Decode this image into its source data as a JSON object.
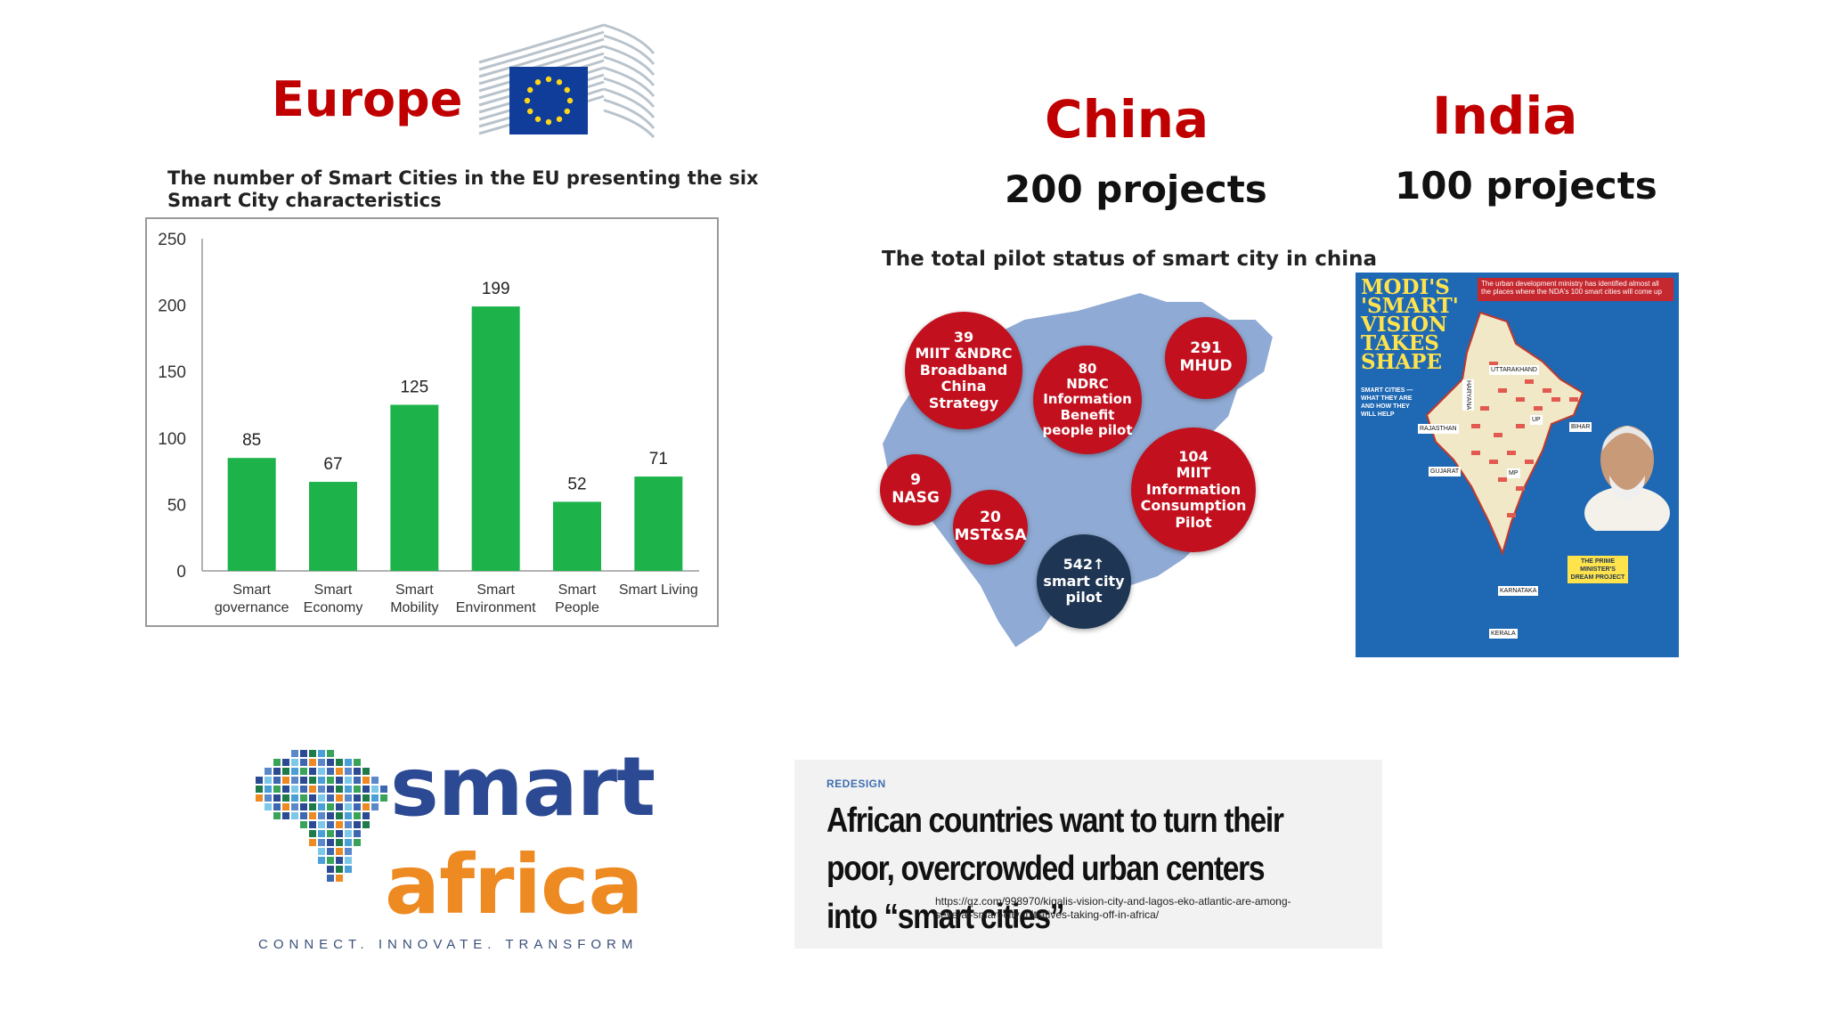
{
  "europe": {
    "title": "Europe"
  },
  "china": {
    "title": "China",
    "projects": "200 projects",
    "map_title": "The total pilot status of smart city in china",
    "bubbles": [
      {
        "text": "39\nMIIT &NDRC\nBroadband\nChina Strategy"
      },
      {
        "text": "80\nNDRC\nInformation\nBenefit\npeople pilot"
      },
      {
        "text": "291\nMHUD"
      },
      {
        "text": "9\nNASG"
      },
      {
        "text": "20\nMST&SA"
      },
      {
        "text": "104\nMIIT\nInformation\nConsumption\nPilot"
      },
      {
        "text": "542↑\nsmart city\npilot"
      }
    ]
  },
  "india": {
    "title": "India",
    "projects": "100 projects",
    "poster": {
      "headline": "MODI'S\n'SMART'\nVISION\nTAKES\nSHAPE",
      "banner": "The urban development ministry has identified almost all the places where the NDA's 100 smart cities will come up",
      "section": "SMART CITIES — WHAT THEY ARE AND HOW THEY WILL HELP",
      "states": [
        "UTTARAKHAND",
        "RAJASTHAN",
        "GUJARAT",
        "MP",
        "BIHAR",
        "KARNATAKA",
        "KERALA",
        "UP",
        "HARYANA"
      ],
      "pm_label": "THE PRIME MINISTER'S DREAM PROJECT"
    }
  },
  "africa": {
    "smart": "smart",
    "africa": "africa",
    "tagline": "CONNECT. INNOVATE. TRANSFORM"
  },
  "article": {
    "kicker": "REDESIGN",
    "headline": "African countries want to turn their poor, overcrowded urban centers into “smart cities”",
    "url": "https://qz.com/998970/kigalis-vision-city-and-lagos-eko-atlantic-are-among-several-smart-city-initiatives-taking-off-in-africa/"
  },
  "chart_data": {
    "type": "bar",
    "title": "The number of Smart Cities in the EU presenting the six Smart City characteristics",
    "categories": [
      "Smart governance",
      "Smart Economy",
      "Smart Mobility",
      "Smart Environment",
      "Smart People",
      "Smart Living"
    ],
    "values": [
      85,
      67,
      125,
      199,
      52,
      71
    ],
    "ylim": [
      0,
      250
    ],
    "yticks": [
      0,
      50,
      100,
      150,
      200,
      250
    ],
    "bar_color": "#1db34a",
    "grid": false,
    "xlabel": "",
    "ylabel": ""
  }
}
